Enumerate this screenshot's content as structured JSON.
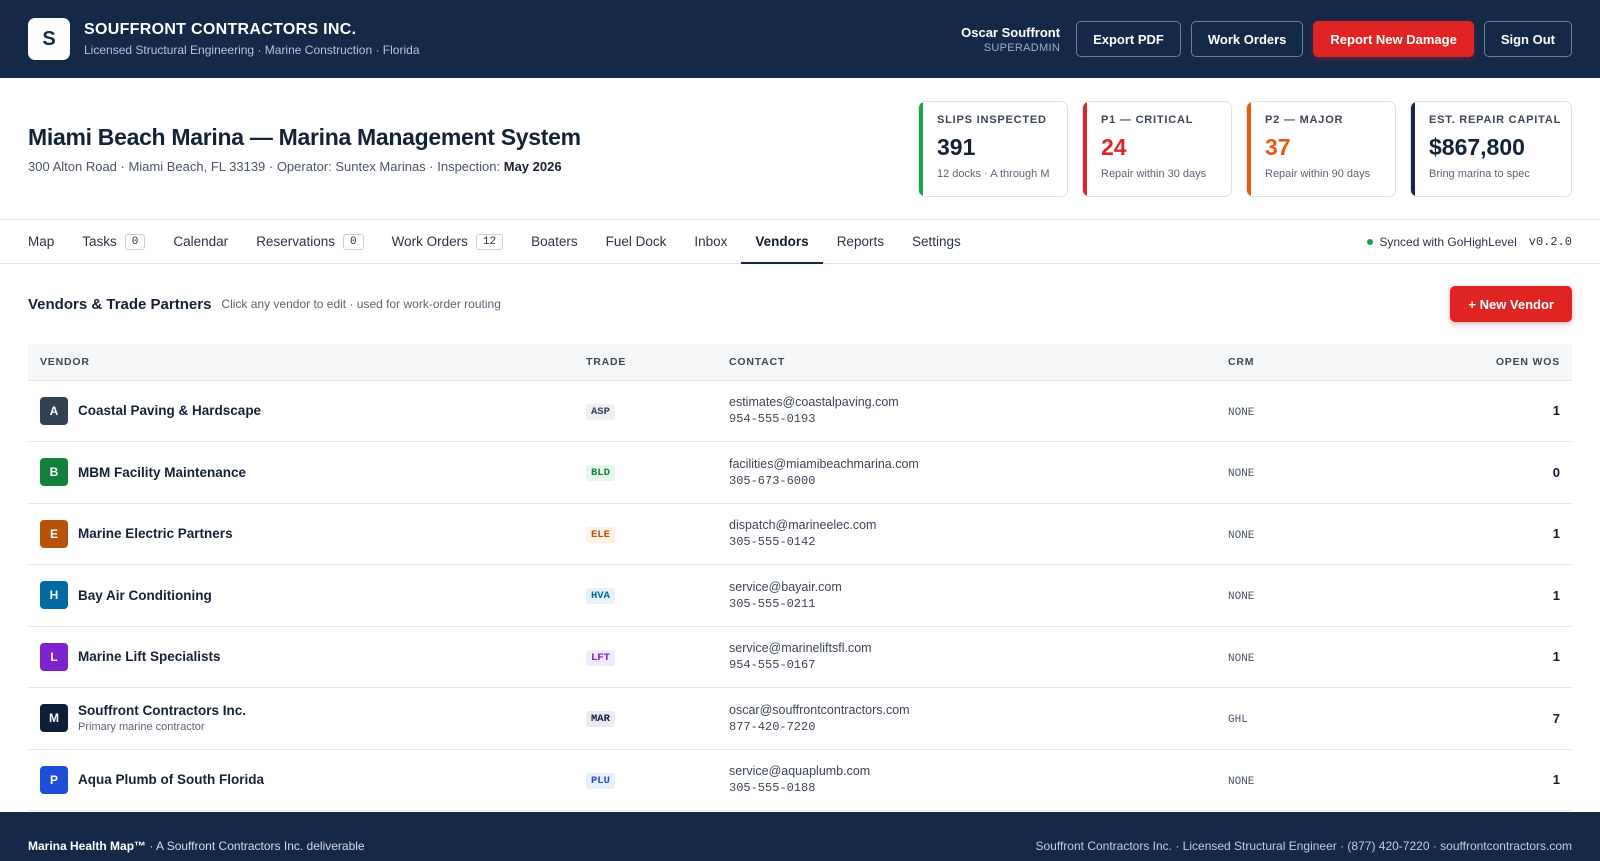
{
  "header": {
    "logo_letter": "S",
    "company": "SOUFFRONT CONTRACTORS INC.",
    "tagline": "Licensed Structural Engineering · Marine Construction · Florida",
    "user_name": "Oscar Souffront",
    "user_role": "SUPERADMIN",
    "buttons": {
      "export_pdf": "Export PDF",
      "work_orders": "Work Orders",
      "report_damage": "Report New Damage",
      "sign_out": "Sign Out"
    }
  },
  "property": {
    "title": "Miami Beach Marina — Marina Management System",
    "address": "300 Alton Road · Miami Beach, FL 33139 · Operator: Suntex Marinas · Inspection:",
    "inspection": "May 2026"
  },
  "stats": [
    {
      "label": "SLIPS INSPECTED",
      "value": "391",
      "note": "12 docks · A through M",
      "accent": "#16a34a",
      "value_color": "#142236"
    },
    {
      "label": "P1 — CRITICAL",
      "value": "24",
      "note": "Repair within 30 days",
      "accent": "#dc2626",
      "value_color": "#dc2626"
    },
    {
      "label": "P2 — MAJOR",
      "value": "37",
      "note": "Repair within 90 days",
      "accent": "#ea580c",
      "value_color": "#ea580c"
    },
    {
      "label": "EST. REPAIR CAPITAL",
      "value": "$867,800",
      "note": "Bring marina to spec",
      "accent": "#142848",
      "value_color": "#142236"
    }
  ],
  "tabs": [
    {
      "label": "Map"
    },
    {
      "label": "Tasks",
      "count": "0"
    },
    {
      "label": "Calendar"
    },
    {
      "label": "Reservations",
      "count": "0"
    },
    {
      "label": "Work Orders",
      "count": "12"
    },
    {
      "label": "Boaters"
    },
    {
      "label": "Fuel Dock"
    },
    {
      "label": "Inbox"
    },
    {
      "label": "Vendors",
      "active": true
    },
    {
      "label": "Reports"
    },
    {
      "label": "Settings"
    }
  ],
  "sync": {
    "status": "Synced with GoHighLevel",
    "version": "v0.2.0"
  },
  "section": {
    "title": "Vendors & Trade Partners",
    "hint": "Click any vendor to edit · used for work-order routing",
    "new_button": "+ New Vendor"
  },
  "table": {
    "columns": [
      "VENDOR",
      "TRADE",
      "CONTACT",
      "CRM",
      "OPEN WOS"
    ],
    "rows": [
      {
        "initial": "A",
        "color": "#334155",
        "name": "Coastal Paving & Hardscape",
        "sub": "",
        "trade": "ASP",
        "trade_bg": "#eef0f3",
        "trade_fg": "#334155",
        "email": "estimates@coastalpaving.com",
        "phone": "954-555-0193",
        "crm": "NONE",
        "open": "1"
      },
      {
        "initial": "B",
        "color": "#15803d",
        "name": "MBM Facility Maintenance",
        "sub": "",
        "trade": "BLD",
        "trade_bg": "#e7f6ec",
        "trade_fg": "#15803d",
        "email": "facilities@miamibeachmarina.com",
        "phone": "305-673-6000",
        "crm": "NONE",
        "open": "0"
      },
      {
        "initial": "E",
        "color": "#b45309",
        "name": "Marine Electric Partners",
        "sub": "",
        "trade": "ELE",
        "trade_bg": "#fdf0e4",
        "trade_fg": "#b45309",
        "email": "dispatch@marineelec.com",
        "phone": "305-555-0142",
        "crm": "NONE",
        "open": "1"
      },
      {
        "initial": "H",
        "color": "#0369a1",
        "name": "Bay Air Conditioning",
        "sub": "",
        "trade": "HVA",
        "trade_bg": "#e6f2fa",
        "trade_fg": "#0369a1",
        "email": "service@bayair.com",
        "phone": "305-555-0211",
        "crm": "NONE",
        "open": "1"
      },
      {
        "initial": "L",
        "color": "#7e22ce",
        "name": "Marine Lift Specialists",
        "sub": "",
        "trade": "LFT",
        "trade_bg": "#f3e8fc",
        "trade_fg": "#7e22ce",
        "email": "service@marineliftsfl.com",
        "phone": "954-555-0167",
        "crm": "NONE",
        "open": "1"
      },
      {
        "initial": "M",
        "color": "#0f1f3a",
        "name": "Souffront Contractors Inc.",
        "sub": "Primary marine contractor",
        "trade": "MAR",
        "trade_bg": "#e8ecf2",
        "trade_fg": "#0f1f3a",
        "email": "oscar@souffrontcontractors.com",
        "phone": "877-420-7220",
        "crm": "GHL",
        "open": "7"
      },
      {
        "initial": "P",
        "color": "#1d4ed8",
        "name": "Aqua Plumb of South Florida",
        "sub": "",
        "trade": "PLU",
        "trade_bg": "#e8eefc",
        "trade_fg": "#1d4ed8",
        "email": "service@aquaplumb.com",
        "phone": "305-555-0188",
        "crm": "NONE",
        "open": "1"
      }
    ]
  },
  "footer": {
    "brand": "Marina Health Map™",
    "brand_rest": " · A Souffront Contractors Inc. deliverable",
    "right": "Souffront Contractors Inc. · Licensed Structural Engineer · (877) 420-7220 · souffrontcontractors.com"
  }
}
